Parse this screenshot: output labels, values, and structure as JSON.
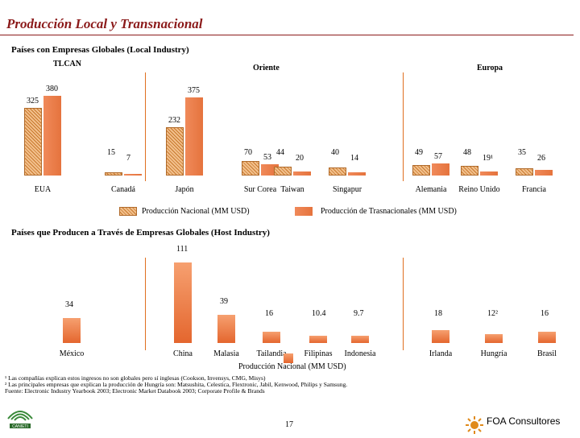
{
  "title": "Producción Local y Transnacional",
  "section1": {
    "heading": "Países con Empresas Globales (Local Industry)",
    "regions": [
      "TLCAN",
      "Oriente",
      "Europa"
    ],
    "legend": [
      "Producción Nacional (MM USD)",
      "Producción de Trasnacionales (MM USD)"
    ]
  },
  "section2": {
    "heading": "Países que Producen a Través de Empresas Globales (Host Industry)",
    "legend": "Producción Nacional (MM USD)"
  },
  "chart_data": [
    {
      "type": "bar",
      "categories": [
        "EUA",
        "Canadá",
        "Japón",
        "Sur Corea",
        "Taiwan",
        "Singapur",
        "Alemania",
        "Reino Unido",
        "Francia"
      ],
      "series": [
        {
          "name": "Producción Nacional (MM USD)",
          "values": [
            325,
            15,
            232,
            70,
            44,
            40,
            49,
            48,
            35
          ]
        },
        {
          "name": "Producción de Trasnacionales (MM USD)",
          "values": [
            380,
            7,
            375,
            53,
            20,
            14,
            57,
            19,
            26
          ]
        }
      ],
      "value_labels": [
        [
          "325",
          "380"
        ],
        [
          "15",
          "7"
        ],
        [
          "232",
          "375"
        ],
        [
          "70",
          "53"
        ],
        [
          "44",
          "20"
        ],
        [
          "40",
          "14"
        ],
        [
          "49",
          "57"
        ],
        [
          "48",
          "19¹"
        ],
        [
          "35",
          "26"
        ]
      ]
    },
    {
      "type": "bar",
      "categories": [
        "México",
        "China",
        "Malasia",
        "Tailandia",
        "Filipinas",
        "Indonesia",
        "Irlanda",
        "Hungría",
        "Brasil"
      ],
      "values": [
        34,
        111,
        39,
        16,
        10.4,
        9.7,
        18,
        12,
        16
      ],
      "value_labels": [
        "34",
        "111",
        "39",
        "16",
        "10.4",
        "9.7",
        "18",
        "12²",
        "16"
      ]
    }
  ],
  "footnotes": [
    "¹ Las compañías explican estos ingresos no son globales pero sí inglesas (Cookson, Invensys, CMG, Misys)",
    "² Las principales empresas que explican la producción de Hungría son: Matsushita, Celestica, Flextronic, Jabil, Kenwood, Philips y Samsung.",
    "Fuente: Electronic Industry Yearbook 2003; Electronic Market Databook 2003; Corporate Profile & Brands"
  ],
  "page_number": "17",
  "logo_left": "CANIETI",
  "logo_right": "FOA Consultores"
}
